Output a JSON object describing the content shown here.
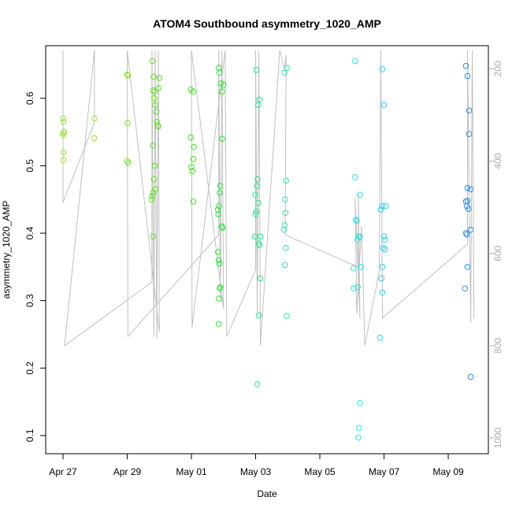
{
  "chart_data": {
    "type": "scatter",
    "title": "ATOM4 Southbound asymmetry_1020_AMP",
    "x_label": "Date",
    "y_label": "asymmetry_1020_AMP",
    "xlim": [
      -0.54,
      13.25
    ],
    "ylim": [
      0.073,
      0.678
    ],
    "y2lim": [
      1034,
      150
    ],
    "xticks": [
      {
        "value": 0,
        "label": "Apr 27"
      },
      {
        "value": 2,
        "label": "Apr 29"
      },
      {
        "value": 4,
        "label": "May 01"
      },
      {
        "value": 6,
        "label": "May 03"
      },
      {
        "value": 8,
        "label": "May 05"
      },
      {
        "value": 10,
        "label": "May 07"
      },
      {
        "value": 12,
        "label": "May 09"
      }
    ],
    "yticks": [
      0.1,
      0.2,
      0.3,
      0.4,
      0.5,
      0.6
    ],
    "y2ticks": [
      200,
      400,
      600,
      800,
      1000
    ],
    "series": [
      {
        "type": "scatter",
        "color": "#9be03a",
        "x": [
          0.0,
          0.02,
          0.03,
          0.01,
          0.0,
          0.02,
          0.01,
          0.98,
          0.97
        ],
        "values": [
          0.57,
          0.565,
          0.55,
          0.548,
          0.545,
          0.52,
          0.508,
          0.57,
          0.541
        ]
      },
      {
        "type": "scatter",
        "color": "#7ee02c",
        "x": [
          2.0,
          2.02,
          2.01,
          2.0,
          2.03
        ],
        "values": [
          0.635,
          0.634,
          0.563,
          0.507,
          0.504
        ]
      },
      {
        "type": "scatter",
        "color": "#62e022",
        "x": [
          2.78,
          2.82,
          2.8,
          2.85,
          2.84,
          2.87,
          2.9,
          2.92,
          2.95,
          2.97,
          2.8,
          2.86,
          2.83,
          2.88,
          2.8,
          2.78,
          2.76,
          2.8,
          3.0,
          2.98
        ],
        "values": [
          0.655,
          0.632,
          0.612,
          0.61,
          0.6,
          0.59,
          0.58,
          0.565,
          0.56,
          0.558,
          0.53,
          0.5,
          0.48,
          0.465,
          0.46,
          0.455,
          0.45,
          0.395,
          0.63,
          0.615
        ]
      },
      {
        "type": "scatter",
        "color": "#45e020",
        "x": [
          3.98,
          4.05,
          3.98,
          4.08,
          4.06,
          4.0,
          4.03,
          4.06
        ],
        "values": [
          0.613,
          0.61,
          0.542,
          0.528,
          0.51,
          0.498,
          0.492,
          0.447
        ]
      },
      {
        "type": "scatter",
        "color": "#2fe03c",
        "x": [
          4.85,
          4.87,
          4.92,
          5.0,
          4.95,
          4.96,
          4.9,
          4.88,
          4.86,
          4.82,
          4.84,
          4.95,
          4.97,
          4.83,
          4.85,
          4.87,
          4.9,
          4.88,
          4.86,
          4.85
        ],
        "values": [
          0.645,
          0.638,
          0.622,
          0.62,
          0.61,
          0.54,
          0.47,
          0.46,
          0.44,
          0.435,
          0.428,
          0.41,
          0.408,
          0.372,
          0.36,
          0.355,
          0.32,
          0.318,
          0.303,
          0.265
        ]
      },
      {
        "type": "scatter",
        "color": "#2fe08e",
        "x": [
          6.02,
          6.12,
          6.08,
          6.06,
          6.04,
          5.99,
          6.08,
          6.02,
          6.0,
          6.15,
          5.98,
          6.1,
          6.12,
          6.15,
          6.1,
          6.05
        ],
        "values": [
          0.642,
          0.598,
          0.59,
          0.48,
          0.47,
          0.457,
          0.445,
          0.432,
          0.428,
          0.395,
          0.395,
          0.385,
          0.382,
          0.333,
          0.278,
          0.176
        ]
      },
      {
        "type": "scatter",
        "color": "#2fe0b2",
        "x": [
          6.97,
          6.9,
          6.95,
          6.92,
          6.93,
          6.9,
          6.88,
          6.94,
          6.91,
          6.97
        ],
        "values": [
          0.645,
          0.638,
          0.478,
          0.45,
          0.43,
          0.412,
          0.405,
          0.378,
          0.353,
          0.277
        ]
      },
      {
        "type": "scatter",
        "color": "#2fe0de",
        "x": [
          9.1,
          9.1,
          9.25,
          9.12,
          9.15,
          9.2,
          9.25,
          9.17,
          9.28,
          9.05,
          9.18,
          9.05,
          9.25,
          9.22,
          9.2
        ],
        "values": [
          0.655,
          0.483,
          0.457,
          0.42,
          0.418,
          0.395,
          0.395,
          0.39,
          0.35,
          0.348,
          0.32,
          0.318,
          0.148,
          0.111,
          0.097
        ]
      },
      {
        "type": "scatter",
        "color": "#2fcdf0",
        "x": [
          9.95,
          10.0,
          9.95,
          10.05,
          9.9,
          10.0,
          10.02,
          9.97,
          10.03,
          9.95,
          9.92,
          9.95,
          9.88
        ],
        "values": [
          0.643,
          0.59,
          0.44,
          0.44,
          0.435,
          0.395,
          0.39,
          0.378,
          0.376,
          0.35,
          0.333,
          0.312,
          0.245
        ]
      },
      {
        "type": "scatter",
        "color": "#2f8ee0",
        "x": [
          12.55,
          12.6,
          12.65,
          12.65,
          12.6,
          12.7,
          12.6,
          12.55,
          12.58,
          12.63,
          12.7,
          12.55,
          12.58,
          12.6,
          12.52,
          12.7
        ],
        "values": [
          0.648,
          0.633,
          0.582,
          0.547,
          0.467,
          0.465,
          0.448,
          0.447,
          0.44,
          0.436,
          0.405,
          0.4,
          0.398,
          0.35,
          0.318,
          0.187
        ]
      },
      {
        "type": "line",
        "axis": "y2",
        "color": "#c0c0c0",
        "x": [
          0,
          0,
          0.98,
          0.98,
          0.05,
          2.77,
          2.77,
          2.83,
          2.87,
          2.92,
          2.97,
          3.0,
          2.0,
          2.02,
          4.85,
          4.85,
          4.9,
          4.95,
          5.0,
          4.0,
          4.02,
          5.05,
          5.1,
          6.0,
          6.0,
          6.05,
          6.1,
          6.15,
          6.75,
          6.9,
          6.95,
          6.92,
          9.2,
          9.2,
          9.25,
          9.1,
          9.15,
          9.3,
          9.4,
          9.85,
          9.9,
          9.95,
          12.6,
          12.6,
          12.7,
          12.75,
          12.8
        ],
        "values": [
          160,
          490,
          316,
          160,
          800,
          662,
          160,
          780,
          160,
          785,
          160,
          770,
          160,
          780,
          560,
          160,
          700,
          160,
          720,
          160,
          760,
          160,
          780,
          635,
          160,
          730,
          160,
          800,
          160,
          200,
          170,
          560,
          630,
          470,
          740,
          480,
          730,
          540,
          800,
          640,
          160,
          740,
          580,
          160,
          750,
          160,
          740
        ]
      }
    ]
  }
}
